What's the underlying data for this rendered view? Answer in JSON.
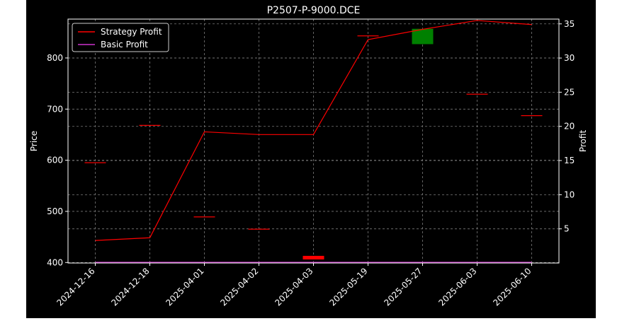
{
  "chart_data": {
    "type": "candlestick-with-lines",
    "title": "P2507-P-9000.DCE",
    "xlabel": "",
    "ylabel_left": "Price",
    "ylabel_right": "Profit",
    "categories": [
      "2024-12-16",
      "2024-12-18",
      "2025-04-01",
      "2025-04-02",
      "2025-04-03",
      "2025-05-19",
      "2025-05-27",
      "2025-06-03",
      "2025-06-10"
    ],
    "left_axis": {
      "ylim": [
        399,
        876
      ],
      "ticks": [
        400,
        500,
        600,
        700,
        800
      ]
    },
    "right_axis": {
      "ylim": [
        0,
        35.7
      ],
      "ticks": [
        5,
        10,
        15,
        20,
        25,
        30,
        35
      ]
    },
    "candles": [
      {
        "x": "2024-12-16",
        "open": 596,
        "close": 596,
        "color": "#ff0000"
      },
      {
        "x": "2024-12-18",
        "open": 669,
        "close": 669,
        "color": "#ff0000"
      },
      {
        "x": "2025-04-01",
        "open": 490,
        "close": 490,
        "color": "#ff0000"
      },
      {
        "x": "2025-04-02",
        "open": 466,
        "close": 466,
        "color": "#ff0000"
      },
      {
        "x": "2025-04-03",
        "open": 413,
        "close": 406,
        "color": "#ff0000"
      },
      {
        "x": "2025-05-19",
        "open": 844,
        "close": 844,
        "color": "#ff0000"
      },
      {
        "x": "2025-05-27",
        "open": 827,
        "close": 857,
        "color": "#008000"
      },
      {
        "x": "2025-06-03",
        "open": 730,
        "close": 730,
        "color": "#ff0000"
      },
      {
        "x": "2025-06-10",
        "open": 688,
        "close": 688,
        "color": "#ff0000"
      }
    ],
    "series": [
      {
        "name": "Strategy Profit",
        "axis": "right",
        "color": "#ff0000",
        "values": [
          3.3,
          3.7,
          19.2,
          18.8,
          18.8,
          32.7,
          34.2,
          35.5,
          34.9
        ]
      },
      {
        "name": "Basic Profit",
        "axis": "right",
        "color": "#cc33cc",
        "values": [
          0.1,
          0.1,
          0.1,
          0.1,
          0.1,
          0.1,
          0.1,
          0.1,
          0.1
        ]
      }
    ],
    "grid": true,
    "legend_position": "top-left"
  },
  "colors": {
    "background": "#000000",
    "foreground": "#ffffff",
    "grid": "#7a7a7a"
  }
}
